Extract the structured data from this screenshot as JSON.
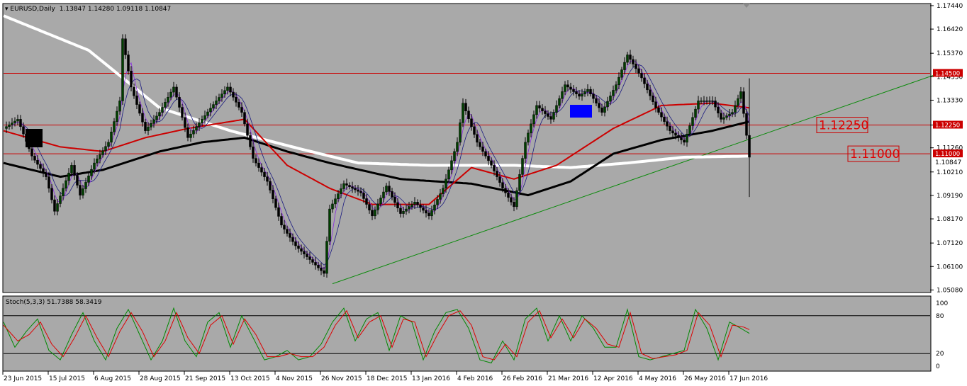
{
  "chart_header": {
    "symbol": "EURUSD,Daily",
    "ohlc": "1.13847 1.14280 1.09118 1.10847"
  },
  "stoch_header": "Stoch(5,3,3) 51.7388 58.3419",
  "colors": {
    "background": "#a9a9a9",
    "bull_candle": "#004000",
    "bear_candle": "#000000",
    "ma_white": "#ffffff",
    "ma_black": "#000000",
    "ma_red": "#cc0000",
    "ma_blue": "#1a1a80",
    "ma_purple": "#8a2be2",
    "level_line": "#cc0000",
    "trendline": "#0a8a0a",
    "stoch_main": "#008800",
    "stoch_signal": "#dd0000"
  },
  "chart_data": [
    {
      "type": "candlestick",
      "title": "EURUSD,Daily",
      "x_labels": [
        "23 Jun 2015",
        "15 Jul 2015",
        "6 Aug 2015",
        "28 Aug 2015",
        "21 Sep 2015",
        "13 Oct 2015",
        "4 Nov 2015",
        "26 Nov 2015",
        "18 Dec 2015",
        "13 Jan 2016",
        "4 Feb 2016",
        "26 Feb 2016",
        "21 Mar 2016",
        "12 Apr 2016",
        "4 May 2016",
        "26 May 2016",
        "17 Jun 2016"
      ],
      "y_ticks": [
        "1.17440",
        "1.16420",
        "1.15370",
        "1.14350",
        "1.13330",
        "1.12250",
        "1.11260",
        "1.10210",
        "1.09190",
        "1.08170",
        "1.07120",
        "1.06100",
        "1.05080"
      ],
      "ylim": [
        1.05,
        1.175
      ],
      "price_path": [
        [
          0,
          1.121
        ],
        [
          5,
          1.125
        ],
        [
          10,
          1.109
        ],
        [
          15,
          1.1
        ],
        [
          18,
          1.085
        ],
        [
          24,
          1.105
        ],
        [
          27,
          1.092
        ],
        [
          32,
          1.106
        ],
        [
          37,
          1.115
        ],
        [
          41,
          1.133
        ],
        [
          42,
          1.16
        ],
        [
          45,
          1.139
        ],
        [
          50,
          1.12
        ],
        [
          55,
          1.128
        ],
        [
          60,
          1.139
        ],
        [
          65,
          1.117
        ],
        [
          70,
          1.125
        ],
        [
          75,
          1.133
        ],
        [
          79,
          1.139
        ],
        [
          84,
          1.128
        ],
        [
          88,
          1.108
        ],
        [
          93,
          1.098
        ],
        [
          98,
          1.079
        ],
        [
          103,
          1.07
        ],
        [
          108,
          1.064
        ],
        [
          113,
          1.058
        ],
        [
          115,
          1.086
        ],
        [
          120,
          1.097
        ],
        [
          126,
          1.093
        ],
        [
          130,
          1.083
        ],
        [
          135,
          1.096
        ],
        [
          140,
          1.084
        ],
        [
          145,
          1.089
        ],
        [
          150,
          1.083
        ],
        [
          155,
          1.095
        ],
        [
          160,
          1.115
        ],
        [
          162,
          1.132
        ],
        [
          167,
          1.115
        ],
        [
          172,
          1.105
        ],
        [
          176,
          1.095
        ],
        [
          180,
          1.087
        ],
        [
          184,
          1.115
        ],
        [
          188,
          1.131
        ],
        [
          193,
          1.125
        ],
        [
          198,
          1.14
        ],
        [
          203,
          1.135
        ],
        [
          206,
          1.138
        ],
        [
          211,
          1.128
        ],
        [
          216,
          1.14
        ],
        [
          220,
          1.153
        ],
        [
          225,
          1.143
        ],
        [
          230,
          1.13
        ],
        [
          235,
          1.12
        ],
        [
          240,
          1.115
        ],
        [
          245,
          1.133
        ],
        [
          250,
          1.133
        ],
        [
          253,
          1.125
        ],
        [
          257,
          1.128
        ],
        [
          260,
          1.137
        ],
        [
          263,
          1.1085
        ]
      ],
      "horizontal_levels": [
        {
          "value": 1.145,
          "tag": "1.14500"
        },
        {
          "value": 1.1225,
          "tag": "1.12250",
          "label": "1.12250"
        },
        {
          "value": 1.11,
          "tag": "1.11000",
          "label": "1.11000"
        }
      ],
      "current_price": "1.10847",
      "trendline": {
        "from": [
          116,
          1.0535
        ],
        "to": [
          330,
          1.145
        ]
      },
      "moving_averages": [
        {
          "color": "white",
          "points": [
            [
              0,
              1.17
            ],
            [
              30,
              1.155
            ],
            [
              55,
              1.13
            ],
            [
              80,
              1.12
            ],
            [
              105,
              1.112
            ],
            [
              125,
              1.106
            ],
            [
              150,
              1.105
            ],
            [
              180,
              1.105
            ],
            [
              200,
              1.104
            ],
            [
              220,
              1.106
            ],
            [
              240,
              1.1085
            ],
            [
              263,
              1.109
            ]
          ]
        },
        {
          "color": "black",
          "points": [
            [
              0,
              1.106
            ],
            [
              20,
              1.1
            ],
            [
              35,
              1.103
            ],
            [
              55,
              1.111
            ],
            [
              70,
              1.115
            ],
            [
              85,
              1.117
            ],
            [
              100,
              1.111
            ],
            [
              115,
              1.106
            ],
            [
              140,
              1.099
            ],
            [
              165,
              1.097
            ],
            [
              185,
              1.092
            ],
            [
              200,
              1.098
            ],
            [
              215,
              1.11
            ],
            [
              232,
              1.116
            ],
            [
              250,
              1.12
            ],
            [
              263,
              1.124
            ]
          ]
        },
        {
          "color": "red",
          "points": [
            [
              0,
              1.12
            ],
            [
              20,
              1.113
            ],
            [
              35,
              1.111
            ],
            [
              50,
              1.117
            ],
            [
              65,
              1.121
            ],
            [
              85,
              1.125
            ],
            [
              100,
              1.105
            ],
            [
              115,
              1.095
            ],
            [
              130,
              1.088
            ],
            [
              150,
              1.088
            ],
            [
              165,
              1.104
            ],
            [
              180,
              1.099
            ],
            [
              195,
              1.105
            ],
            [
              215,
              1.121
            ],
            [
              232,
              1.131
            ],
            [
              250,
              1.132
            ],
            [
              263,
              1.13
            ]
          ]
        }
      ]
    },
    {
      "type": "line",
      "title": "Stoch(5,3,3) 51.7388 58.3419",
      "y_ticks": [
        "100",
        "80",
        "20",
        "0"
      ],
      "ylim": [
        0,
        100
      ],
      "levels": [
        80,
        20
      ],
      "series": [
        {
          "name": "Main",
          "points": [
            [
              0,
              70
            ],
            [
              4,
              30
            ],
            [
              8,
              55
            ],
            [
              12,
              75
            ],
            [
              16,
              25
            ],
            [
              20,
              10
            ],
            [
              24,
              50
            ],
            [
              28,
              85
            ],
            [
              32,
              40
            ],
            [
              36,
              10
            ],
            [
              40,
              60
            ],
            [
              44,
              90
            ],
            [
              48,
              50
            ],
            [
              52,
              10
            ],
            [
              56,
              40
            ],
            [
              60,
              92
            ],
            [
              64,
              40
            ],
            [
              68,
              15
            ],
            [
              72,
              70
            ],
            [
              76,
              85
            ],
            [
              80,
              30
            ],
            [
              84,
              80
            ],
            [
              88,
              45
            ],
            [
              92,
              10
            ],
            [
              96,
              15
            ],
            [
              100,
              25
            ],
            [
              104,
              10
            ],
            [
              108,
              15
            ],
            [
              112,
              35
            ],
            [
              116,
              70
            ],
            [
              120,
              92
            ],
            [
              124,
              40
            ],
            [
              128,
              75
            ],
            [
              132,
              85
            ],
            [
              136,
              25
            ],
            [
              140,
              80
            ],
            [
              144,
              70
            ],
            [
              148,
              10
            ],
            [
              152,
              55
            ],
            [
              156,
              85
            ],
            [
              160,
              90
            ],
            [
              164,
              60
            ],
            [
              168,
              10
            ],
            [
              172,
              5
            ],
            [
              176,
              40
            ],
            [
              180,
              10
            ],
            [
              184,
              75
            ],
            [
              188,
              92
            ],
            [
              192,
              40
            ],
            [
              196,
              80
            ],
            [
              200,
              40
            ],
            [
              204,
              80
            ],
            [
              208,
              60
            ],
            [
              212,
              30
            ],
            [
              216,
              30
            ],
            [
              220,
              90
            ],
            [
              224,
              15
            ],
            [
              228,
              10
            ],
            [
              232,
              15
            ],
            [
              236,
              20
            ],
            [
              240,
              25
            ],
            [
              244,
              90
            ],
            [
              248,
              60
            ],
            [
              252,
              10
            ],
            [
              256,
              70
            ],
            [
              260,
              60
            ],
            [
              263,
              52
            ]
          ]
        },
        {
          "name": "Signal",
          "points": [
            [
              0,
              65
            ],
            [
              5,
              40
            ],
            [
              9,
              50
            ],
            [
              13,
              70
            ],
            [
              17,
              35
            ],
            [
              21,
              15
            ],
            [
              25,
              45
            ],
            [
              29,
              80
            ],
            [
              33,
              45
            ],
            [
              37,
              15
            ],
            [
              41,
              55
            ],
            [
              45,
              85
            ],
            [
              49,
              55
            ],
            [
              53,
              15
            ],
            [
              57,
              40
            ],
            [
              61,
              85
            ],
            [
              65,
              45
            ],
            [
              69,
              20
            ],
            [
              73,
              65
            ],
            [
              77,
              80
            ],
            [
              81,
              35
            ],
            [
              85,
              75
            ],
            [
              89,
              50
            ],
            [
              93,
              15
            ],
            [
              97,
              15
            ],
            [
              101,
              20
            ],
            [
              105,
              15
            ],
            [
              109,
              15
            ],
            [
              113,
              30
            ],
            [
              117,
              65
            ],
            [
              121,
              88
            ],
            [
              125,
              45
            ],
            [
              129,
              70
            ],
            [
              133,
              80
            ],
            [
              137,
              30
            ],
            [
              141,
              75
            ],
            [
              145,
              70
            ],
            [
              149,
              15
            ],
            [
              153,
              50
            ],
            [
              157,
              80
            ],
            [
              161,
              88
            ],
            [
              165,
              65
            ],
            [
              169,
              15
            ],
            [
              173,
              10
            ],
            [
              177,
              35
            ],
            [
              181,
              15
            ],
            [
              185,
              70
            ],
            [
              189,
              88
            ],
            [
              193,
              45
            ],
            [
              197,
              75
            ],
            [
              201,
              45
            ],
            [
              205,
              75
            ],
            [
              209,
              60
            ],
            [
              213,
              35
            ],
            [
              217,
              30
            ],
            [
              221,
              85
            ],
            [
              225,
              20
            ],
            [
              229,
              12
            ],
            [
              233,
              15
            ],
            [
              237,
              18
            ],
            [
              241,
              25
            ],
            [
              245,
              85
            ],
            [
              249,
              65
            ],
            [
              253,
              15
            ],
            [
              257,
              65
            ],
            [
              261,
              62
            ],
            [
              263,
              58
            ]
          ]
        }
      ]
    }
  ]
}
